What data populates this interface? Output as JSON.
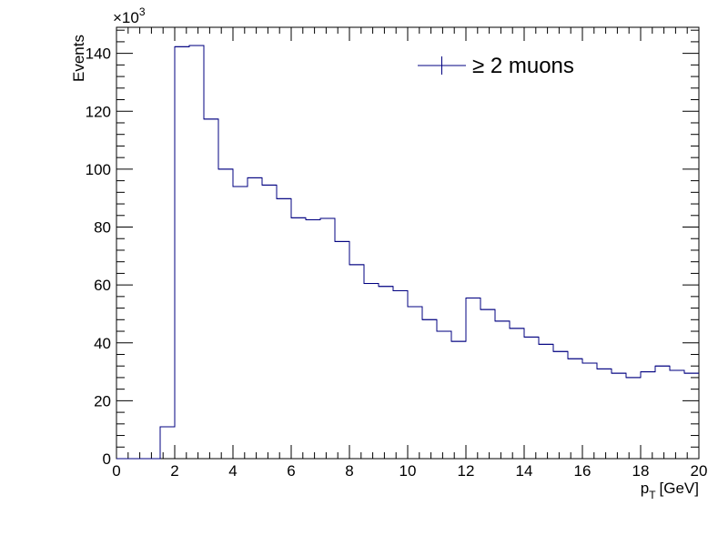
{
  "chart_data": {
    "type": "histogram",
    "xlabel_main": "p",
    "xlabel_sub": "T",
    "xlabel_unit": "[GeV]",
    "ylabel": "Events",
    "y_exponent_base": "×10",
    "y_exponent_power": "3",
    "xlim": [
      0,
      20
    ],
    "ylim": [
      0,
      149
    ],
    "bin_width": 0.5,
    "x_ticks": [
      0,
      2,
      4,
      6,
      8,
      10,
      12,
      14,
      16,
      18,
      20
    ],
    "y_ticks": [
      0,
      20,
      40,
      60,
      80,
      100,
      120,
      140
    ],
    "series": [
      {
        "name": "≥ 2 muons",
        "color": "#000080",
        "bin_edges_start": 0,
        "values": [
          0,
          0,
          0,
          11,
          142.3,
          142.7,
          117.3,
          100,
          94,
          97,
          94.5,
          89.8,
          83.2,
          82.5,
          83,
          75,
          67,
          60.5,
          59.5,
          58,
          52.5,
          48,
          44,
          40.5,
          55.5,
          51.5,
          47.5,
          45,
          42,
          39.5,
          37,
          34.5,
          33,
          31,
          29.5,
          28,
          30,
          32,
          30.5,
          29.5
        ]
      }
    ],
    "legend": {
      "label": "≥ 2 muons",
      "position": "top-right"
    },
    "grid": false
  }
}
